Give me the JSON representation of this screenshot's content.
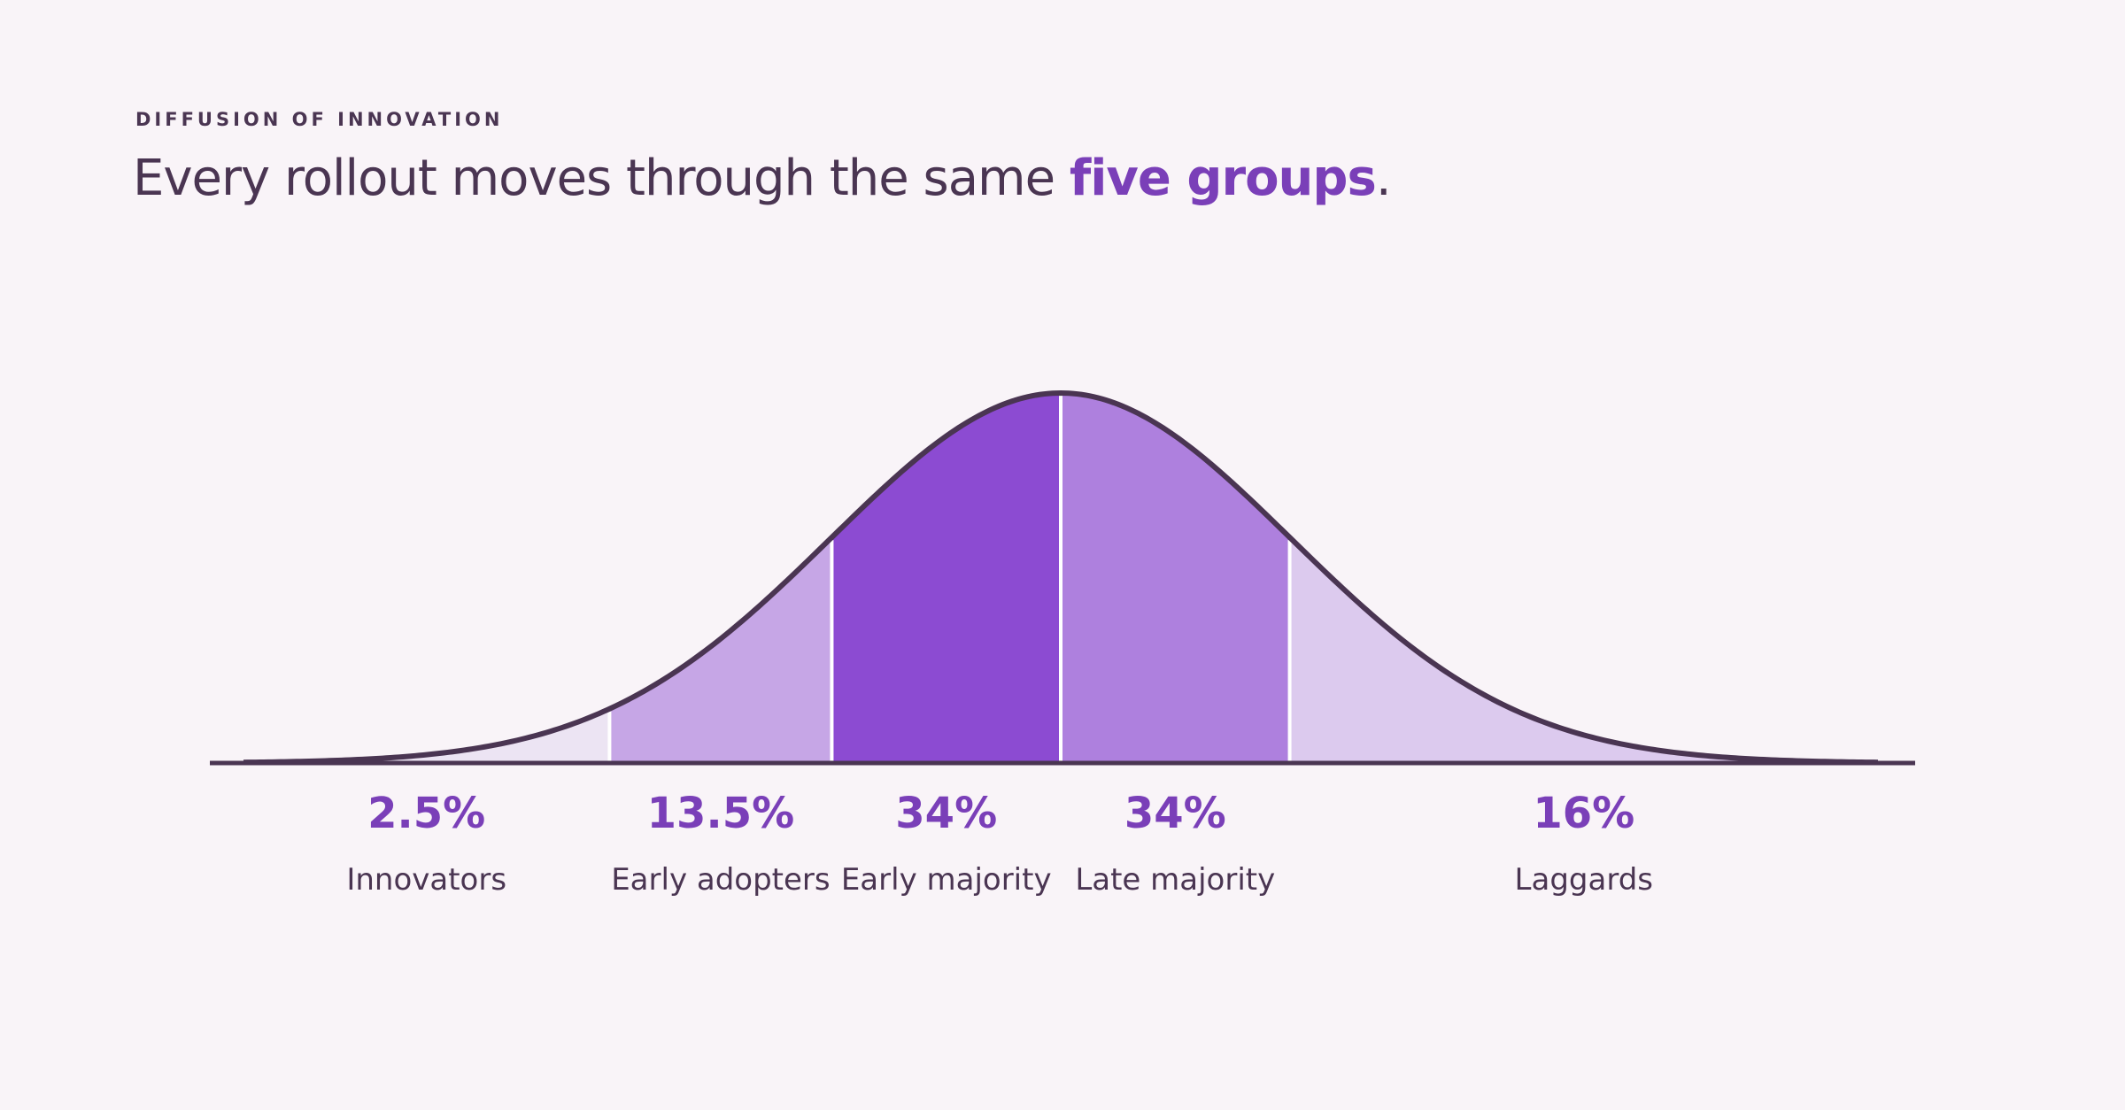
{
  "chart_data": {
    "type": "distribution",
    "kicker": "DIFFUSION OF INNOVATION",
    "title_prefix": "Every rollout moves through the same ",
    "title_highlight": "five groups",
    "title_suffix": ".",
    "categories": [
      "Innovators",
      "Early adopters",
      "Early majority",
      "Late majority",
      "Laggards"
    ],
    "values": [
      2.5,
      13.5,
      34,
      34,
      16
    ],
    "value_labels": [
      "2.5%",
      "13.5%",
      "34%",
      "34%",
      "16%"
    ],
    "colors": [
      "#ece4f3",
      "#c6a6e6",
      "#8c4bd2",
      "#ae80de",
      "#dccaee"
    ],
    "line_color": "#4a3552"
  }
}
